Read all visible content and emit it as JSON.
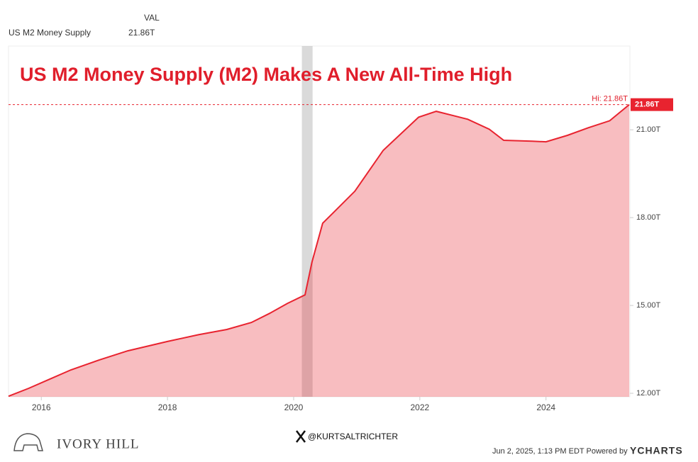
{
  "chart_data": {
    "type": "area",
    "title": "US M2 Money Supply (M2) Makes A New All-Time High",
    "header_label": "VAL",
    "last_label": "21.86T",
    "hi": {
      "value": 21.86,
      "label": "Hi: 21.86T"
    },
    "recession": [
      2020.13,
      2020.3
    ],
    "x": [
      2015.48,
      2015.8,
      2016.13,
      2016.47,
      2016.92,
      2017.37,
      2018.0,
      2018.49,
      2018.94,
      2019.33,
      2019.62,
      2019.9,
      2020.18,
      2020.29,
      2020.46,
      2020.63,
      2020.97,
      2021.42,
      2021.98,
      2022.26,
      2022.76,
      2023.1,
      2023.33,
      2023.78,
      2024.0,
      2024.34,
      2024.67,
      2025.01,
      2025.32
    ],
    "series": [
      {
        "name": "US M2 Money Supply",
        "color": "#e8232f",
        "values": [
          11.9,
          12.17,
          12.48,
          12.8,
          13.14,
          13.45,
          13.77,
          14.0,
          14.18,
          14.42,
          14.73,
          15.07,
          15.36,
          16.48,
          17.81,
          18.17,
          18.9,
          20.3,
          21.43,
          21.63,
          21.36,
          21.02,
          20.64,
          20.61,
          20.59,
          20.81,
          21.07,
          21.31,
          21.86
        ]
      }
    ],
    "xlim": [
      2015.48,
      2025.33
    ],
    "xticks": [
      2016,
      2018,
      2020,
      2022,
      2024
    ],
    "ylim": [
      11.88,
      23.86
    ],
    "yticks": [
      {
        "value": 12,
        "label": "12.00T"
      },
      {
        "value": 15,
        "label": "15.00T"
      },
      {
        "value": 18,
        "label": "18.00T"
      },
      {
        "value": 21,
        "label": "21.00T"
      }
    ]
  },
  "footer": {
    "brand": "IVORY HILL",
    "handle": "@KURTSALTRICHTER",
    "timestamp": "Jun 2, 2025, 1:13 PM EDT Powered by",
    "provider": "YCHARTS"
  }
}
